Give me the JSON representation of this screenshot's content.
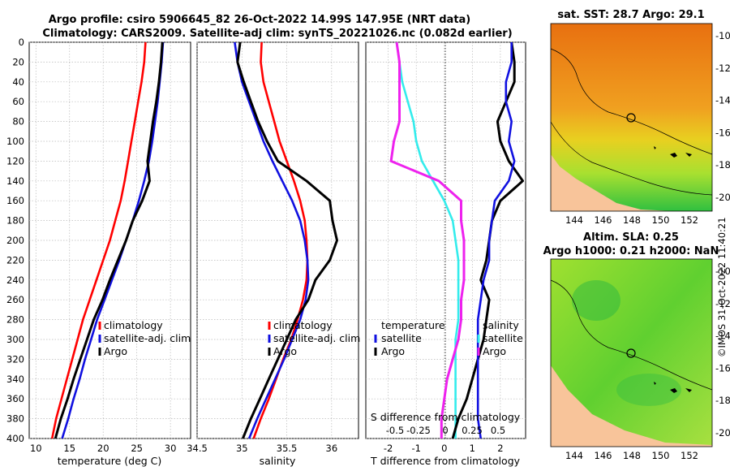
{
  "header": {
    "line1": "Argo profile: csiro 5906645_82 26-Oct-2022 14.99S 147.95E (NRT data)",
    "line2": "Climatology: CARS2009. Satellite-adj clim: synTS_20221026.nc (0.082d earlier)"
  },
  "colors": {
    "climatology": "#ff0000",
    "satellite": "#1010e0",
    "argo": "#000000",
    "t_diff": "#33ecec",
    "s_diff": "#ee22ee"
  },
  "y_ticks": [
    "0",
    "20",
    "40",
    "60",
    "80",
    "100",
    "120",
    "140",
    "160",
    "180",
    "200",
    "220",
    "240",
    "260",
    "280",
    "300",
    "320",
    "340",
    "360",
    "380",
    "400"
  ],
  "chart_data": [
    {
      "type": "line",
      "xlabel": "temperature (deg C)",
      "xlim": [
        9,
        33
      ],
      "ylim": [
        0,
        400
      ],
      "x_ticks": [
        "10",
        "15",
        "20",
        "25",
        "30"
      ],
      "legend": {
        "placement": "lower-middle",
        "entries": [
          "climatology",
          "satellite-adj. clim",
          "Argo"
        ]
      },
      "series": [
        {
          "name": "climatology",
          "color": "#ff0000",
          "x": [
            26.3,
            26.1,
            25.7,
            25.2,
            24.7,
            24.2,
            23.7,
            23.2,
            22.6,
            21.8,
            21.0,
            20.0,
            19.0,
            18.0,
            17.0,
            16.2,
            15.4,
            14.6,
            13.8,
            13.0,
            12.4
          ],
          "y": [
            0,
            20,
            40,
            60,
            80,
            100,
            120,
            140,
            160,
            180,
            200,
            220,
            240,
            260,
            280,
            300,
            320,
            340,
            360,
            380,
            400
          ]
        },
        {
          "name": "satellite-adj. clim",
          "color": "#1010e0",
          "x": [
            28.9,
            28.7,
            28.4,
            28.1,
            27.7,
            27.3,
            26.8,
            26.1,
            25.3,
            24.4,
            23.4,
            22.4,
            21.3,
            20.2,
            19.1,
            18.2,
            17.3,
            16.5,
            15.6,
            14.8,
            13.9
          ],
          "y": [
            0,
            20,
            40,
            60,
            80,
            100,
            120,
            140,
            160,
            180,
            200,
            220,
            240,
            260,
            280,
            300,
            320,
            340,
            360,
            380,
            400
          ]
        },
        {
          "name": "Argo",
          "color": "#000000",
          "x": [
            28.8,
            28.6,
            28.3,
            27.9,
            27.4,
            27.0,
            26.6,
            26.9,
            25.8,
            24.4,
            23.4,
            22.2,
            21.0,
            19.9,
            18.6,
            17.6,
            16.6,
            15.6,
            14.7,
            13.7,
            12.9
          ],
          "y": [
            0,
            20,
            40,
            60,
            80,
            100,
            120,
            140,
            160,
            180,
            200,
            220,
            240,
            260,
            280,
            300,
            320,
            340,
            360,
            380,
            400
          ]
        }
      ]
    },
    {
      "type": "line",
      "xlabel": "salinity",
      "xlim": [
        34.5,
        36.3
      ],
      "ylim": [
        0,
        400
      ],
      "x_ticks": [
        "34.5",
        "35",
        "35.5",
        "36"
      ],
      "legend": {
        "placement": "lower-middle",
        "entries": [
          "climatology",
          "satellite-adj. clim",
          "Argo"
        ]
      },
      "series": [
        {
          "name": "climatology",
          "color": "#ff0000",
          "x": [
            35.22,
            35.21,
            35.24,
            35.3,
            35.36,
            35.42,
            35.5,
            35.58,
            35.65,
            35.7,
            35.72,
            35.73,
            35.72,
            35.68,
            35.62,
            35.55,
            35.46,
            35.38,
            35.3,
            35.21,
            35.13
          ],
          "y": [
            0,
            20,
            40,
            60,
            80,
            100,
            120,
            140,
            160,
            180,
            200,
            220,
            240,
            260,
            280,
            300,
            320,
            340,
            360,
            380,
            400
          ]
        },
        {
          "name": "satellite-adj. clim",
          "color": "#1010e0",
          "x": [
            34.92,
            34.95,
            35.0,
            35.08,
            35.16,
            35.24,
            35.34,
            35.45,
            35.56,
            35.65,
            35.7,
            35.73,
            35.74,
            35.71,
            35.65,
            35.56,
            35.47,
            35.37,
            35.27,
            35.17,
            35.08
          ],
          "y": [
            0,
            20,
            40,
            60,
            80,
            100,
            120,
            140,
            160,
            180,
            200,
            220,
            240,
            260,
            280,
            300,
            320,
            340,
            360,
            380,
            400
          ]
        },
        {
          "name": "Argo",
          "color": "#000000",
          "x": [
            34.98,
            34.95,
            35.02,
            35.1,
            35.18,
            35.28,
            35.4,
            35.72,
            35.98,
            36.01,
            36.06,
            35.98,
            35.82,
            35.74,
            35.6,
            35.5,
            35.4,
            35.3,
            35.2,
            35.1,
            35.01
          ],
          "y": [
            0,
            20,
            40,
            60,
            80,
            100,
            120,
            140,
            160,
            180,
            200,
            220,
            240,
            260,
            280,
            300,
            320,
            340,
            360,
            380,
            400
          ]
        }
      ]
    },
    {
      "type": "line",
      "xlabel": "T difference from climatology",
      "xlabel_top": "S difference from climatology",
      "xlim": [
        -2.8,
        2.9
      ],
      "ylim": [
        0,
        400
      ],
      "x_ticks": [
        "-2",
        "-1",
        "0",
        "1",
        "2"
      ],
      "x_ticks_top": [
        "-0.5",
        "-0.25",
        "0",
        "0.25",
        "0.5"
      ],
      "legend_temperature": {
        "title": "temperature",
        "entries": [
          "satellite",
          "Argo"
        ]
      },
      "legend_salinity": {
        "title": "salinity",
        "entries": [
          "satellite",
          "Argo"
        ]
      },
      "series": [
        {
          "name": "T diff satellite",
          "color": "#33ecec",
          "x": [
            -1.7,
            -1.6,
            -1.5,
            -1.3,
            -1.1,
            -1.0,
            -0.8,
            -0.4,
            0.0,
            0.3,
            0.4,
            0.5,
            0.5,
            0.5,
            0.5,
            0.4,
            0.4,
            0.4,
            0.4,
            0.4,
            0.4
          ],
          "y": [
            0,
            20,
            40,
            60,
            80,
            100,
            120,
            140,
            160,
            180,
            200,
            220,
            240,
            260,
            280,
            300,
            320,
            340,
            360,
            380,
            400
          ]
        },
        {
          "name": "T diff Argo",
          "color": "#000000",
          "x": [
            2.4,
            2.5,
            2.5,
            2.2,
            1.9,
            2.0,
            2.3,
            2.8,
            2.0,
            1.7,
            1.6,
            1.5,
            1.3,
            1.6,
            1.5,
            1.4,
            1.2,
            1.0,
            0.8,
            0.5,
            0.3
          ],
          "y": [
            0,
            20,
            40,
            60,
            80,
            100,
            120,
            140,
            160,
            180,
            200,
            220,
            240,
            260,
            280,
            300,
            320,
            340,
            360,
            380,
            400
          ]
        },
        {
          "name": "S diff satellite",
          "color": "#1010e0",
          "x": [
            2.4,
            2.4,
            2.2,
            2.2,
            2.4,
            2.3,
            2.5,
            2.3,
            1.8,
            1.7,
            1.6,
            1.6,
            1.4,
            1.3,
            1.2,
            1.2,
            1.2,
            1.2,
            1.2,
            1.2,
            1.3
          ],
          "y": [
            0,
            20,
            40,
            60,
            80,
            100,
            120,
            140,
            160,
            180,
            200,
            220,
            240,
            260,
            280,
            300,
            320,
            340,
            360,
            380,
            400
          ]
        },
        {
          "name": "S diff Argo",
          "color": "#ee22ee",
          "x": [
            -1.7,
            -1.6,
            -1.6,
            -1.6,
            -1.6,
            -1.8,
            -1.9,
            -0.2,
            0.6,
            0.6,
            0.7,
            0.7,
            0.7,
            0.6,
            0.6,
            0.5,
            0.3,
            0.1,
            0.0,
            -0.1,
            -0.1
          ],
          "y": [
            0,
            20,
            40,
            60,
            80,
            100,
            120,
            140,
            160,
            180,
            200,
            220,
            240,
            260,
            280,
            300,
            320,
            340,
            360,
            380,
            400
          ]
        }
      ]
    }
  ],
  "maps": [
    {
      "title": "sat. SST: 28.7 Argo: 29.1",
      "x_ticks": [
        "144",
        "146",
        "148",
        "150",
        "152"
      ],
      "y_ticks": [
        "-10",
        "-12",
        "-14",
        "-16",
        "-18",
        "-20"
      ]
    },
    {
      "title1": "Altim. SLA: 0.25",
      "title2": "Argo h1000: 0.21 h2000: NaN",
      "x_ticks": [
        "144",
        "146",
        "148",
        "150",
        "152"
      ],
      "y_ticks": [
        "-10",
        "-12",
        "-14",
        "-16",
        "-18",
        "-20"
      ]
    }
  ],
  "credit": "©IMOS 31-Oct-2022 11:40:21"
}
